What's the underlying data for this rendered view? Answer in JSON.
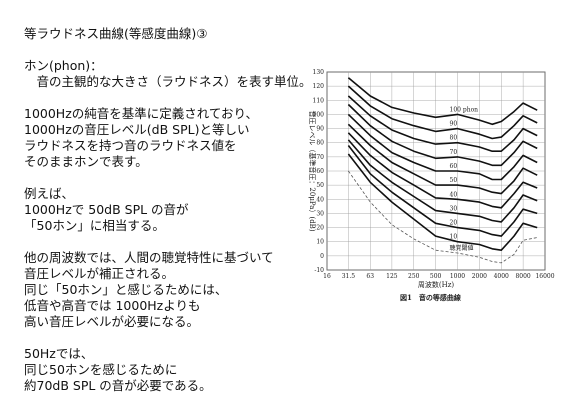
{
  "document": {
    "title": "等ラウドネス曲線(等感度曲線)③",
    "paragraphs": [
      [
        "ホン(phon)：",
        "　音の主観的な大きさ（ラウドネス）を表す単位。"
      ],
      [
        "1000Hzの純音を基準に定義されており、",
        "1000Hzの音圧レベル(dB SPL)と等しい",
        "ラウドネスを持つ音のラウドネス値を",
        "そのままホンで表す。"
      ],
      [
        "例えば、",
        "1000Hzで 50dB SPL の音が",
        "「50ホン」に相当する。"
      ],
      [
        "他の周波数では、人間の聴覚特性に基づいて",
        "音圧レベルが補正される。",
        "同じ「50ホン」と感じるためには、",
        "低音や高音では 1000Hzよりも",
        "高い音圧レベルが必要になる。"
      ],
      [
        "50Hzでは、",
        "同じ50ホンを感じるために",
        "約70dB SPL の音が必要である。"
      ]
    ]
  },
  "chart_data": {
    "type": "line",
    "caption": "図1　音の等感曲線",
    "x_label": "周波数(Hz)",
    "y_label": "音圧レベル（基準音圧：20μPa）(dB)",
    "xscale": "log",
    "xlim": [
      16,
      16000
    ],
    "ylim": [
      -10,
      130
    ],
    "xticks": [
      16,
      31.5,
      63,
      125,
      250,
      500,
      1000,
      2000,
      4000,
      8000,
      16000
    ],
    "yticks": [
      -10,
      0,
      10,
      20,
      30,
      40,
      50,
      60,
      70,
      80,
      90,
      100,
      110,
      120,
      130
    ],
    "grid": true,
    "x": [
      31.5,
      63,
      125,
      250,
      500,
      1000,
      2000,
      3000,
      4000,
      6000,
      8000,
      12500
    ],
    "series": [
      {
        "name": "100 phon",
        "color": "#111111",
        "values": [
          126,
          113,
          105,
          101,
          98,
          100,
          96,
          93,
          95,
          102,
          108,
          103
        ]
      },
      {
        "name": "90",
        "color": "#111111",
        "values": [
          120,
          106,
          97,
          92,
          88,
          90,
          86,
          83,
          84,
          92,
          99,
          94
        ]
      },
      {
        "name": "80",
        "color": "#111111",
        "values": [
          113,
          99,
          89,
          83,
          79,
          80,
          77,
          74,
          74,
          82,
          90,
          85
        ]
      },
      {
        "name": "70",
        "color": "#111111",
        "values": [
          107,
          92,
          81,
          74,
          69,
          70,
          67,
          64,
          64,
          73,
          81,
          76
        ]
      },
      {
        "name": "60",
        "color": "#111111",
        "values": [
          100,
          85,
          73,
          66,
          60,
          60,
          58,
          54,
          54,
          63,
          71,
          66
        ]
      },
      {
        "name": "50",
        "color": "#111111",
        "values": [
          93,
          78,
          66,
          58,
          50,
          50,
          48,
          45,
          44,
          53,
          62,
          57
        ]
      },
      {
        "name": "40",
        "color": "#111111",
        "values": [
          87,
          71,
          59,
          50,
          41,
          40,
          38,
          35,
          34,
          44,
          52,
          48
        ]
      },
      {
        "name": "30",
        "color": "#111111",
        "values": [
          82,
          64,
          52,
          42,
          32,
          30,
          28,
          25,
          24,
          34,
          43,
          39
        ]
      },
      {
        "name": "20",
        "color": "#111111",
        "values": [
          78,
          58,
          45,
          34,
          23,
          20,
          18,
          15,
          14,
          24,
          33,
          30
        ]
      },
      {
        "name": "10",
        "color": "#111111",
        "values": [
          72,
          52,
          38,
          26,
          14,
          10,
          8,
          5,
          4,
          14,
          23,
          20
        ]
      },
      {
        "name": "聴覚閾値",
        "color": "#555555",
        "dashed": true,
        "values": [
          60,
          38,
          22,
          12,
          4,
          2,
          -1,
          -4,
          -5,
          1,
          11,
          13
        ]
      }
    ]
  }
}
